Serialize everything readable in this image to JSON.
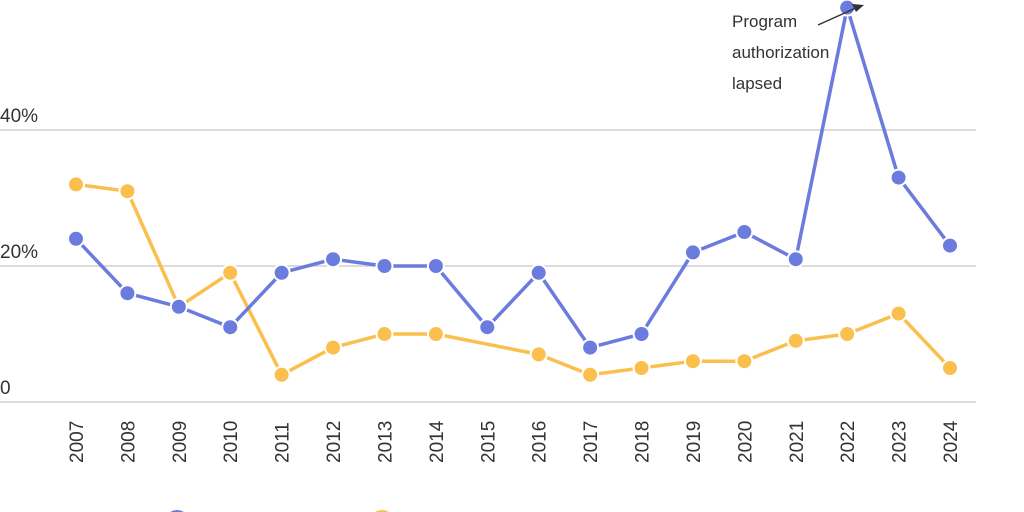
{
  "chart_data": {
    "type": "line",
    "x": [
      "2007",
      "2008",
      "2009",
      "2010",
      "2011",
      "2012",
      "2013",
      "2014",
      "2015",
      "2016",
      "2017",
      "2018",
      "2019",
      "2020",
      "2021",
      "2022",
      "2023",
      "2024"
    ],
    "series": [
      {
        "color": "#6b7bde",
        "values": [
          24,
          16,
          14,
          11,
          19,
          21,
          20,
          20,
          11,
          19,
          8,
          10,
          22,
          25,
          21,
          58,
          33,
          23
        ]
      },
      {
        "color": "#fbbf4e",
        "values": [
          32,
          31,
          14,
          19,
          4,
          8,
          10,
          10,
          null,
          7,
          4,
          5,
          6,
          6,
          9,
          10,
          13,
          5
        ]
      }
    ],
    "yticks": [
      {
        "value": 0,
        "label": "0"
      },
      {
        "value": 20,
        "label": "20%"
      },
      {
        "value": 40,
        "label": "40%"
      }
    ],
    "grid": true,
    "legend": "bottom",
    "annotation": {
      "lines": [
        "Program",
        "authorization",
        "lapsed"
      ],
      "x": "2022"
    }
  }
}
